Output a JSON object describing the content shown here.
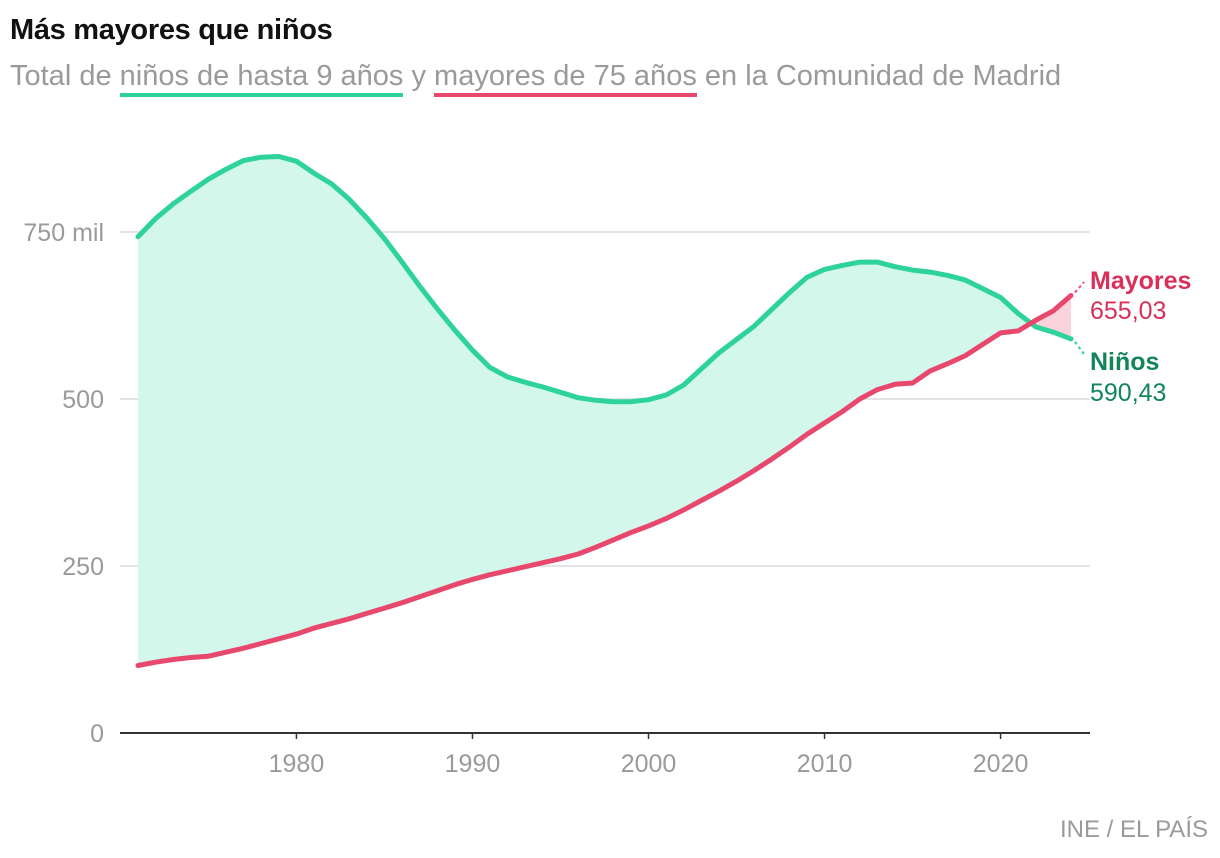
{
  "chart_data": {
    "type": "area",
    "title": "Más mayores que niños",
    "subtitle": {
      "prefix": "Total de ",
      "ninos_link": "niños de hasta 9 años",
      "middle": " y ",
      "mayores_link": "mayores de 75 años",
      "suffix": " en la Comunidad de Madrid"
    },
    "source": "INE / EL PAÍS",
    "ylim": [
      0,
      800
    ],
    "xlim": [
      1969,
      2025
    ],
    "y_ticks": [
      {
        "value": 0,
        "label": "0"
      },
      {
        "value": 250,
        "label": "250"
      },
      {
        "value": 500,
        "label": "500"
      },
      {
        "value": 750,
        "label": "750 mil"
      }
    ],
    "x_ticks": [
      {
        "value": 1980,
        "label": "1980"
      },
      {
        "value": 1990,
        "label": "1990"
      },
      {
        "value": 2000,
        "label": "2000"
      },
      {
        "value": 2010,
        "label": "2010"
      },
      {
        "value": 2020,
        "label": "2020"
      }
    ],
    "x": [
      1971,
      1972,
      1973,
      1974,
      1975,
      1976,
      1977,
      1978,
      1979,
      1980,
      1981,
      1982,
      1983,
      1984,
      1985,
      1986,
      1987,
      1988,
      1989,
      1990,
      1991,
      1992,
      1993,
      1994,
      1995,
      1996,
      1997,
      1998,
      1999,
      2000,
      2001,
      2002,
      2003,
      2004,
      2005,
      2006,
      2007,
      2008,
      2009,
      2010,
      2011,
      2012,
      2013,
      2014,
      2015,
      2016,
      2017,
      2018,
      2019,
      2020,
      2021,
      2022,
      2023,
      2024
    ],
    "series": [
      {
        "name": "Niños",
        "color": "#2dd39b",
        "label_color": "#12855a",
        "final_label": "590,43",
        "values": [
          743,
          770,
          792,
          811,
          829,
          844,
          857,
          862,
          863,
          856,
          838,
          822,
          799,
          771,
          740,
          705,
          669,
          635,
          603,
          573,
          547,
          533,
          525,
          518,
          510,
          502,
          498,
          496,
          496,
          499,
          506,
          521,
          545,
          569,
          589,
          609,
          634,
          659,
          682,
          694,
          700,
          705,
          705,
          698,
          693,
          690,
          685,
          678,
          665,
          652,
          628,
          608,
          600,
          590
        ]
      },
      {
        "name": "Mayores",
        "color": "#e8486e",
        "label_color": "#d92f59",
        "final_label": "655,03",
        "values": [
          101,
          106,
          110,
          113,
          115,
          121,
          127,
          134,
          141,
          148,
          157,
          164,
          171,
          179,
          187,
          195,
          204,
          213,
          222,
          230,
          237,
          243,
          249,
          255,
          261,
          268,
          278,
          289,
          300,
          310,
          321,
          334,
          348,
          362,
          377,
          393,
          410,
          428,
          447,
          464,
          481,
          500,
          514,
          522,
          524,
          542,
          553,
          565,
          582,
          599,
          602,
          618,
          632,
          655
        ]
      }
    ]
  }
}
